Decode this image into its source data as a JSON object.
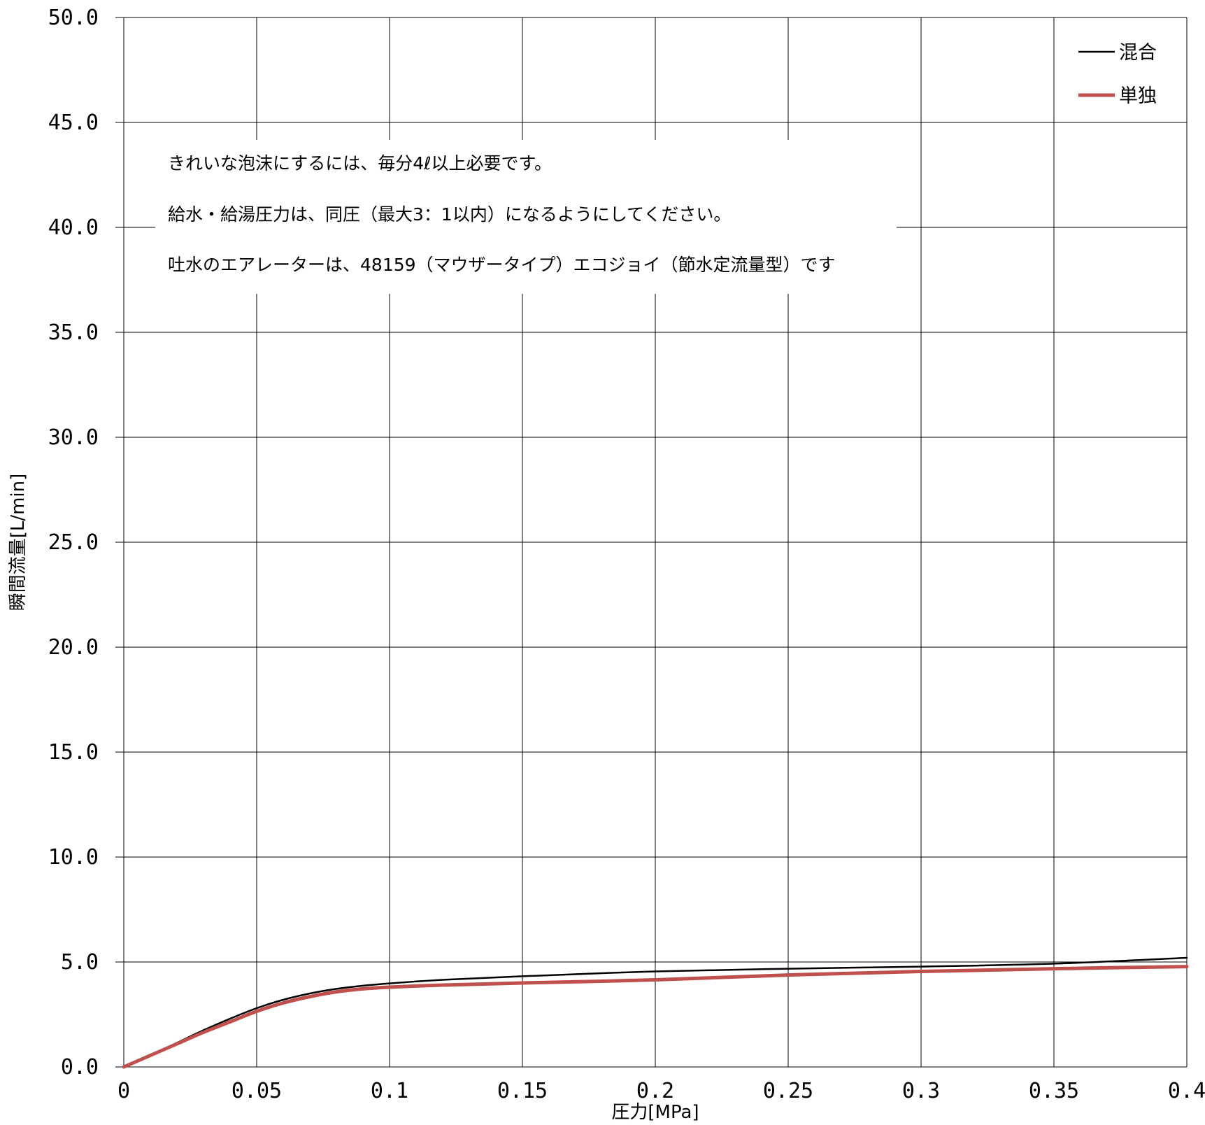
{
  "chart_data": {
    "type": "line",
    "xlabel": "圧力[MPa]",
    "ylabel": "瞬間流量[L/min]",
    "xlim": [
      0,
      0.4
    ],
    "ylim": [
      0,
      50
    ],
    "x_ticks": [
      "0",
      "0.05",
      "0.1",
      "0.15",
      "0.2",
      "0.25",
      "0.3",
      "0.35",
      "0.4"
    ],
    "y_ticks": [
      "0.0",
      "5.0",
      "10.0",
      "15.0",
      "20.0",
      "25.0",
      "30.0",
      "35.0",
      "40.0",
      "45.0",
      "50.0"
    ],
    "grid": true,
    "legend_position": "top-right",
    "series": [
      {
        "name": "混合",
        "color": "#000000",
        "x": [
          0,
          0.01,
          0.02,
          0.03,
          0.04,
          0.05,
          0.06,
          0.07,
          0.08,
          0.09,
          0.1,
          0.12,
          0.15,
          0.2,
          0.25,
          0.3,
          0.35,
          0.4
        ],
        "y": [
          0,
          0.55,
          1.15,
          1.75,
          2.3,
          2.8,
          3.2,
          3.5,
          3.72,
          3.87,
          3.98,
          4.15,
          4.32,
          4.55,
          4.68,
          4.78,
          4.92,
          5.2
        ]
      },
      {
        "name": "単独",
        "color": "#c0504d",
        "x": [
          0,
          0.01,
          0.02,
          0.03,
          0.04,
          0.05,
          0.06,
          0.07,
          0.08,
          0.09,
          0.1,
          0.12,
          0.15,
          0.2,
          0.25,
          0.3,
          0.35,
          0.4
        ],
        "y": [
          0,
          0.55,
          1.1,
          1.65,
          2.15,
          2.65,
          3.05,
          3.35,
          3.58,
          3.72,
          3.8,
          3.9,
          4.0,
          4.15,
          4.38,
          4.55,
          4.68,
          4.78
        ]
      }
    ],
    "annotations": [
      "きれいな泡沫にするには、毎分4ℓ以上必要です。",
      "給水・給湯圧力は、同圧（最大3：1以内）になるようにしてください。",
      "吐水のエアレーターは、48159（マウザータイプ）エコジョイ（節水定流量型）です"
    ]
  }
}
